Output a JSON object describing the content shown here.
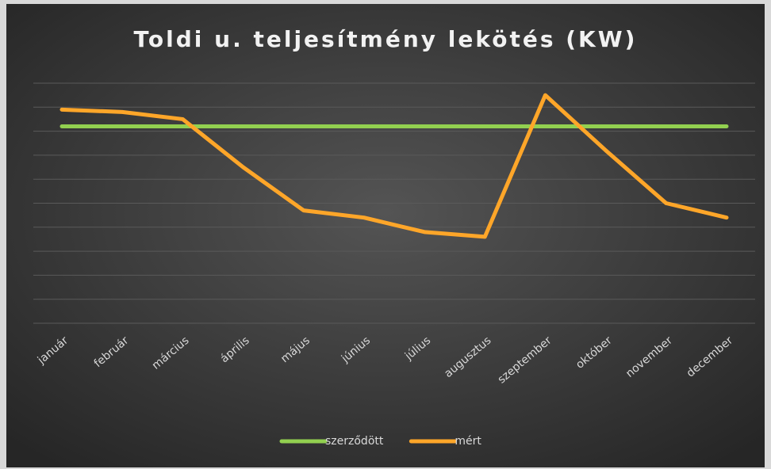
{
  "chart_data": {
    "type": "line",
    "title": "Toldi u. teljesítmény lekötés (KW)",
    "categories": [
      "január",
      "február",
      "március",
      "április",
      "május",
      "június",
      "július",
      "augusztus",
      "szeptember",
      "október",
      "november",
      "december"
    ],
    "series": [
      {
        "name": "szerződött",
        "color": "#92d050",
        "values": [
          8.2,
          8.2,
          8.2,
          8.2,
          8.2,
          8.2,
          8.2,
          8.2,
          8.2,
          8.2,
          8.2,
          8.2
        ]
      },
      {
        "name": "mért",
        "color": "#ffa629",
        "values": [
          8.9,
          8.8,
          8.5,
          6.5,
          4.7,
          4.4,
          3.8,
          3.6,
          9.5,
          7.2,
          5.0,
          4.4
        ]
      }
    ],
    "ylim": [
      0,
      10
    ],
    "yticks": [
      0,
      1,
      2,
      3,
      4,
      5,
      6,
      7,
      8,
      9,
      10
    ],
    "grid": true,
    "legend": "bottom"
  }
}
